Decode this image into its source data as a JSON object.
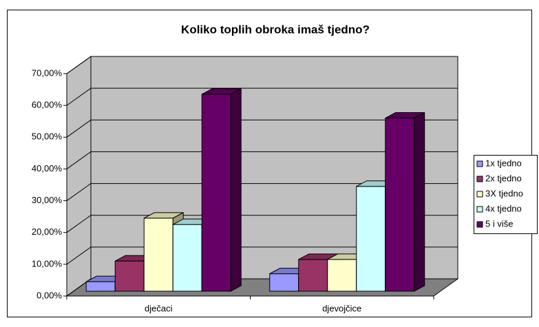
{
  "chart_data": {
    "type": "bar3d",
    "title": "Koliko toplih obroka imaš tjedno?",
    "categories": [
      "dječaci",
      "djevojčice"
    ],
    "series": [
      {
        "name": "1x tjedno",
        "color": "#9999ff",
        "values": [
          3,
          5.5
        ]
      },
      {
        "name": "2x tjedno",
        "color": "#993366",
        "values": [
          9.5,
          10
        ]
      },
      {
        "name": "3X tjedno",
        "color": "#ffffcc",
        "values": [
          23,
          10
        ]
      },
      {
        "name": "4x tjedno",
        "color": "#ccffff",
        "values": [
          21,
          33
        ]
      },
      {
        "name": "5 i više",
        "color": "#660066",
        "values": [
          62,
          54.5
        ]
      }
    ],
    "ylim": [
      0,
      70
    ],
    "yticks": [
      {
        "value": 0,
        "label": "0,00%"
      },
      {
        "value": 10,
        "label": "10,00%"
      },
      {
        "value": 20,
        "label": "20,00%"
      },
      {
        "value": 30,
        "label": "30,00%"
      },
      {
        "value": 40,
        "label": "40,00%"
      },
      {
        "value": 50,
        "label": "50,00%"
      },
      {
        "value": 60,
        "label": "60,00%"
      },
      {
        "value": 70,
        "label": "70,00%"
      }
    ],
    "grid": true,
    "legend": "right"
  }
}
